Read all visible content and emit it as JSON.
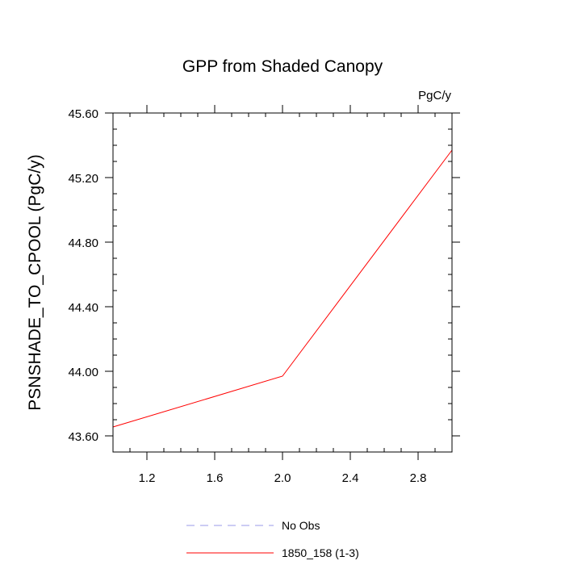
{
  "chart_data": {
    "type": "line",
    "title": "GPP from Shaded Canopy",
    "units": "PgC/y",
    "xlabel": "",
    "ylabel": "PSNSHADE_TO_CPOOL  (PgC/y)",
    "xlim": [
      1.0,
      3.0
    ],
    "ylim": [
      43.5,
      45.6
    ],
    "x_major_ticks": [
      1.2,
      1.6,
      2.0,
      2.4,
      2.8
    ],
    "x_tick_labels": [
      "1.2",
      "1.6",
      "2.0",
      "2.4",
      "2.8"
    ],
    "x_minor_step": 0.1,
    "y_major_ticks": [
      43.6,
      44.0,
      44.4,
      44.8,
      45.2,
      45.6
    ],
    "y_tick_labels": [
      "43.60",
      "44.00",
      "44.40",
      "44.80",
      "45.20",
      "45.60"
    ],
    "y_minor_step": 0.1,
    "series": [
      {
        "name": "1850_158 (1-3)",
        "color": "#ff0000",
        "style": "solid",
        "x": [
          1,
          2,
          3
        ],
        "y": [
          43.655,
          43.97,
          45.37
        ]
      }
    ],
    "legend": [
      {
        "label": "No Obs",
        "color": "#9a9ae8",
        "style": "dashed"
      },
      {
        "label": "1850_158 (1-3)",
        "color": "#ff0000",
        "style": "solid"
      }
    ],
    "legend_position": "bottom"
  }
}
